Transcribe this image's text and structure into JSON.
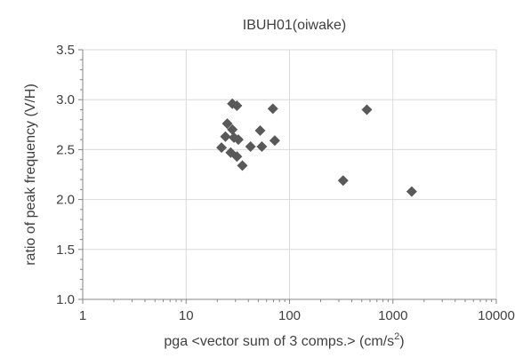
{
  "chart_data": {
    "type": "scatter",
    "title": "IBUH01(oiwake)",
    "xlabel": {
      "main": "pga <vector sum of 3 comps.> (cm/s",
      "superscript": "2",
      "suffix": ")"
    },
    "ylabel": "ratio of peak frequency (V/H)",
    "x_scale": "log",
    "xlim": [
      1,
      10000
    ],
    "ylim": [
      1.0,
      3.5
    ],
    "x_ticks": [
      1,
      10,
      100,
      1000,
      10000
    ],
    "x_tick_labels": [
      "1",
      "10",
      "100",
      "1000",
      "10000"
    ],
    "y_ticks": [
      1.0,
      1.5,
      2.0,
      2.5,
      3.0,
      3.5
    ],
    "y_tick_labels": [
      "1.0",
      "1.5",
      "2.0",
      "2.5",
      "3.0",
      "3.5"
    ],
    "grid": true,
    "legend": "none",
    "marker": "diamond",
    "marker_color": "#595959",
    "grid_color": "#d9d9d9",
    "axis_color": "#868686",
    "series": [
      {
        "points": [
          {
            "x": 28,
            "y": 2.96
          },
          {
            "x": 31,
            "y": 2.94
          },
          {
            "x": 69,
            "y": 2.91
          },
          {
            "x": 560,
            "y": 2.9
          },
          {
            "x": 25,
            "y": 2.76
          },
          {
            "x": 28,
            "y": 2.7
          },
          {
            "x": 52,
            "y": 2.69
          },
          {
            "x": 24,
            "y": 2.63
          },
          {
            "x": 29,
            "y": 2.62
          },
          {
            "x": 32,
            "y": 2.6
          },
          {
            "x": 72,
            "y": 2.59
          },
          {
            "x": 42,
            "y": 2.53
          },
          {
            "x": 54,
            "y": 2.53
          },
          {
            "x": 22,
            "y": 2.52
          },
          {
            "x": 27,
            "y": 2.47
          },
          {
            "x": 31,
            "y": 2.43
          },
          {
            "x": 35,
            "y": 2.34
          },
          {
            "x": 330,
            "y": 2.19
          },
          {
            "x": 1520,
            "y": 2.08
          }
        ]
      }
    ]
  }
}
